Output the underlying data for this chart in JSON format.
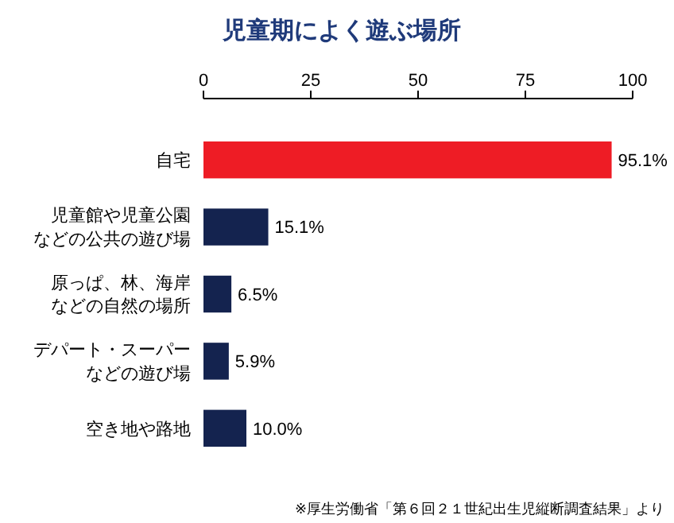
{
  "chart_data": {
    "type": "bar",
    "orientation": "horizontal",
    "title": "児童期によく遊ぶ場所",
    "categories": [
      "自宅",
      "児童館や児童公園などの公共の遊び場",
      "原っぱ、林、海岸などの自然の場所",
      "デパート・スーパーなどの遊び場",
      "空き地や路地"
    ],
    "values": [
      95.1,
      15.1,
      6.5,
      5.9,
      10.0
    ],
    "colors": [
      "#ee1c25",
      "#14234f",
      "#14234f",
      "#14234f",
      "#14234f"
    ],
    "value_labels": [
      "95.1%",
      "15.1%",
      "6.5%",
      "5.9%",
      "10.0%"
    ],
    "xlim": [
      0,
      100
    ],
    "xticks": [
      0,
      25,
      50,
      75,
      100
    ],
    "grid": false,
    "legend": false,
    "annotations": [
      "※厚生労働省「第６回２１世紀出生児縦断調査結果」より"
    ]
  }
}
